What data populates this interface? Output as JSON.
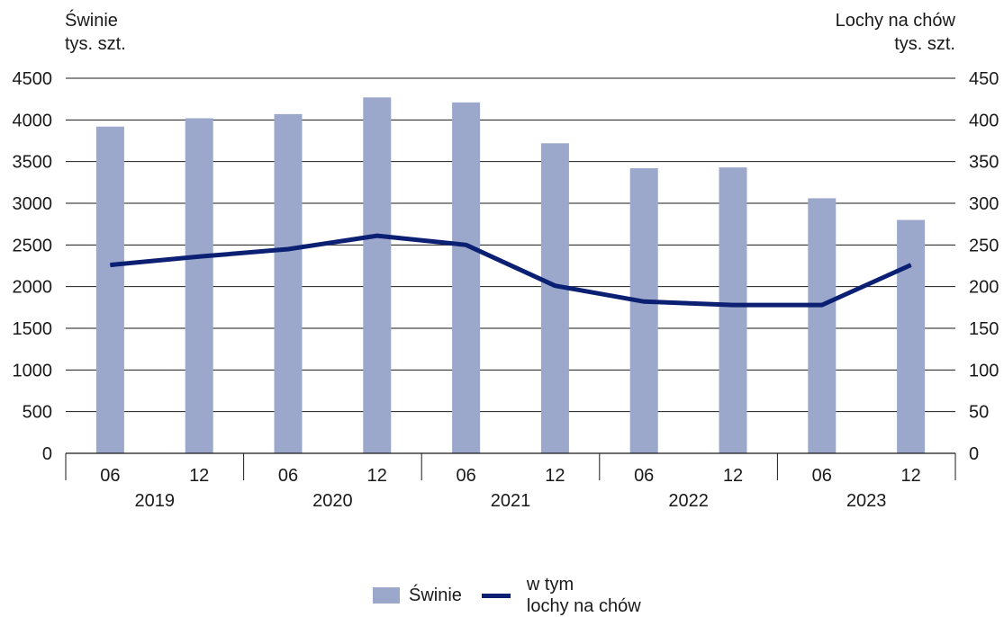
{
  "chart_data": {
    "type": "bar",
    "y_left_title_lines": [
      "Świnie",
      "tys. szt."
    ],
    "y_right_title_lines": [
      "Lochy na chów",
      "tys. szt."
    ],
    "ylim_left": [
      0,
      4500
    ],
    "ylim_right": [
      0,
      450
    ],
    "yticks_left": [
      "0",
      "500",
      "1000",
      "1500",
      "2000",
      "2500",
      "3000",
      "3500",
      "4000",
      "4500"
    ],
    "yticks_right": [
      "0",
      "50",
      "100",
      "150",
      "200",
      "250",
      "300",
      "350",
      "400",
      "450"
    ],
    "categories": [
      "06",
      "12",
      "06",
      "12",
      "06",
      "12",
      "06",
      "12",
      "06",
      "12"
    ],
    "years": [
      "2019",
      "2020",
      "2021",
      "2022",
      "2023"
    ],
    "grid": true,
    "legend_position": "bottom",
    "series": [
      {
        "name": "Świnie",
        "type": "bar",
        "axis": "left",
        "color": "#9ba8cc",
        "values": [
          3920,
          4020,
          4070,
          4270,
          4210,
          3720,
          3420,
          3430,
          3060,
          2800
        ]
      },
      {
        "name": "w tym lochy na chów",
        "type": "line",
        "axis": "right",
        "color": "#0b1f73",
        "values": [
          226,
          236,
          245,
          261,
          250,
          201,
          182,
          178,
          178,
          226
        ]
      }
    ]
  },
  "legend": {
    "bar_label": "Świnie",
    "line_label_lines": [
      "w tym",
      "lochy na chów"
    ]
  }
}
